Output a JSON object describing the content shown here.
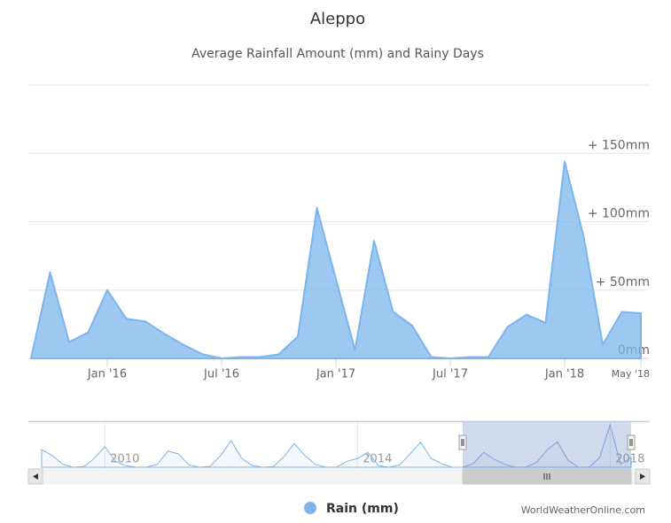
{
  "chart_data": {
    "type": "area",
    "title": "Aleppo",
    "subtitle": "Average Rainfall Amount (mm) and Rainy Days",
    "x": [
      "2015-09",
      "2015-10",
      "2015-11",
      "2015-12",
      "2016-01",
      "2016-02",
      "2016-03",
      "2016-04",
      "2016-05",
      "2016-06",
      "2016-07",
      "2016-08",
      "2016-09",
      "2016-10",
      "2016-11",
      "2016-12",
      "2017-01",
      "2017-02",
      "2017-03",
      "2017-04",
      "2017-05",
      "2017-06",
      "2017-07",
      "2017-08",
      "2017-09",
      "2017-10",
      "2017-11",
      "2017-12",
      "2018-01",
      "2018-02",
      "2018-03",
      "2018-04",
      "2018-05"
    ],
    "series": [
      {
        "name": "Rain (mm)",
        "color": "#7cb5ec",
        "values": [
          0,
          63,
          12,
          19,
          50,
          29,
          27,
          18,
          10,
          3,
          0,
          1,
          1,
          3,
          16,
          110,
          58,
          6,
          86,
          34,
          24,
          1,
          0,
          1,
          1,
          23,
          32,
          26,
          144,
          89,
          10,
          34,
          33
        ]
      }
    ],
    "xlim": [
      "2015-09",
      "2018-05"
    ],
    "xticks": [
      {
        "value": "2016-01",
        "label": "Jan '16"
      },
      {
        "value": "2016-07",
        "label": "Jul '16"
      },
      {
        "value": "2017-01",
        "label": "Jan '17"
      },
      {
        "value": "2017-07",
        "label": "Jul '17"
      },
      {
        "value": "2018-01",
        "label": "Jan '18"
      },
      {
        "value": "2018-05",
        "label": "May '18"
      }
    ],
    "ylim": [
      0,
      200
    ],
    "yticks": [
      {
        "value": 0,
        "label": "0mm"
      },
      {
        "value": 50,
        "label": "+ 50mm"
      },
      {
        "value": 100,
        "label": "+ 100mm"
      },
      {
        "value": 150,
        "label": "+ 150mm"
      }
    ],
    "grid": true,
    "navigator": {
      "x": [
        "2009-01",
        "2009-03",
        "2009-05",
        "2009-07",
        "2009-09",
        "2009-11",
        "2010-01",
        "2010-03",
        "2010-05",
        "2010-07",
        "2010-09",
        "2010-11",
        "2011-01",
        "2011-03",
        "2011-05",
        "2011-07",
        "2011-09",
        "2011-11",
        "2012-01",
        "2012-03",
        "2012-05",
        "2012-07",
        "2012-09",
        "2012-11",
        "2013-01",
        "2013-03",
        "2013-05",
        "2013-07",
        "2013-09",
        "2013-11",
        "2014-01",
        "2014-03",
        "2014-05",
        "2014-07",
        "2014-09",
        "2014-11",
        "2015-01",
        "2015-03",
        "2015-05",
        "2015-07",
        "2015-09",
        "2015-11",
        "2016-01",
        "2016-03",
        "2016-05",
        "2016-07",
        "2016-09",
        "2016-11",
        "2017-01",
        "2017-03",
        "2017-05",
        "2017-07",
        "2017-09",
        "2017-11",
        "2018-01",
        "2018-03",
        "2018-05"
      ],
      "values": [
        60,
        40,
        10,
        0,
        2,
        30,
        70,
        20,
        5,
        0,
        1,
        10,
        55,
        45,
        8,
        0,
        3,
        40,
        90,
        30,
        6,
        0,
        2,
        35,
        80,
        40,
        10,
        0,
        1,
        20,
        30,
        50,
        5,
        0,
        8,
        45,
        85,
        30,
        12,
        0,
        0,
        12,
        50,
        27,
        10,
        0,
        1,
        16,
        58,
        86,
        24,
        0,
        1,
        32,
        144,
        10,
        33
      ],
      "xlim": [
        "2009-01",
        "2018-05"
      ],
      "ylim": [
        0,
        150
      ],
      "xticks": [
        {
          "value": "2010-01",
          "label": "2010"
        },
        {
          "value": "2014-01",
          "label": "2014"
        },
        {
          "value": "2018-01",
          "label": "2018"
        }
      ]
    },
    "credits": "WorldWeatherOnline.com"
  }
}
